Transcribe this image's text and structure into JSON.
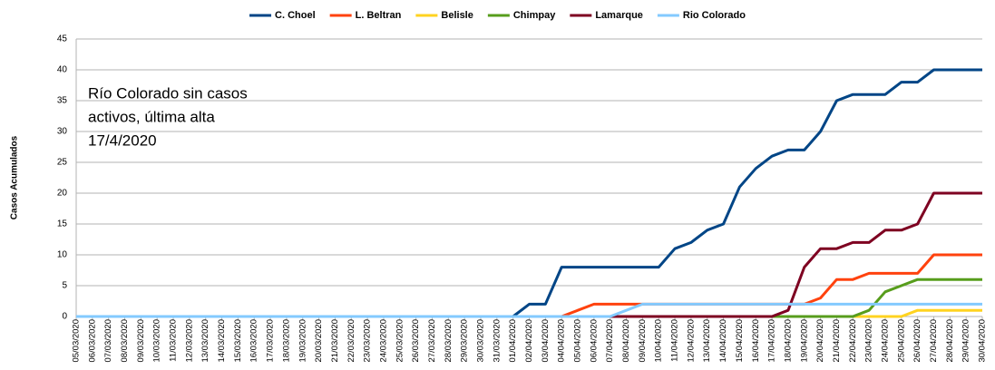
{
  "chart_data": {
    "type": "line",
    "y_label": "Casos Acumulados",
    "annotation": [
      "Río Colorado sin casos",
      "activos, última alta",
      "17/4/2020"
    ],
    "categories": [
      "05/03/2020",
      "06/03/2020",
      "07/03/2020",
      "08/03/2020",
      "09/03/2020",
      "10/03/2020",
      "11/03/2020",
      "12/03/2020",
      "13/03/2020",
      "14/03/2020",
      "15/03/2020",
      "16/03/2020",
      "17/03/2020",
      "18/03/2020",
      "19/03/2020",
      "20/03/2020",
      "21/03/2020",
      "22/03/2020",
      "23/03/2020",
      "24/03/2020",
      "25/03/2020",
      "26/03/2020",
      "27/03/2020",
      "28/03/2020",
      "29/03/2020",
      "30/03/2020",
      "31/03/2020",
      "01/04/2020",
      "02/04/2020",
      "03/04/2020",
      "04/04/2020",
      "05/04/2020",
      "06/04/2020",
      "07/04/2020",
      "08/04/2020",
      "09/04/2020",
      "10/04/2020",
      "11/04/2020",
      "12/04/2020",
      "13/04/2020",
      "14/04/2020",
      "15/04/2020",
      "16/04/2020",
      "17/04/2020",
      "18/04/2020",
      "19/04/2020",
      "20/04/2020",
      "21/04/2020",
      "22/04/2020",
      "23/04/2020",
      "24/04/2020",
      "25/04/2020",
      "26/04/2020",
      "27/04/2020",
      "28/04/2020",
      "29/04/2020",
      "30/04/2020"
    ],
    "series": [
      {
        "name": "C. Choel",
        "color": "#004586",
        "values": [
          0,
          0,
          0,
          0,
          0,
          0,
          0,
          0,
          0,
          0,
          0,
          0,
          0,
          0,
          0,
          0,
          0,
          0,
          0,
          0,
          0,
          0,
          0,
          0,
          0,
          0,
          0,
          0,
          2,
          2,
          8,
          8,
          8,
          8,
          8,
          8,
          8,
          11,
          12,
          14,
          15,
          21,
          24,
          26,
          27,
          27,
          30,
          35,
          36,
          36,
          36,
          38,
          38,
          40,
          40,
          40,
          40
        ]
      },
      {
        "name": "L. Beltran",
        "color": "#ff420e",
        "values": [
          0,
          0,
          0,
          0,
          0,
          0,
          0,
          0,
          0,
          0,
          0,
          0,
          0,
          0,
          0,
          0,
          0,
          0,
          0,
          0,
          0,
          0,
          0,
          0,
          0,
          0,
          0,
          0,
          0,
          0,
          0,
          1,
          2,
          2,
          2,
          2,
          2,
          2,
          2,
          2,
          2,
          2,
          2,
          2,
          2,
          2,
          3,
          6,
          6,
          7,
          7,
          7,
          7,
          10,
          10,
          10,
          10
        ]
      },
      {
        "name": "Belisle",
        "color": "#ffd320",
        "values": [
          0,
          0,
          0,
          0,
          0,
          0,
          0,
          0,
          0,
          0,
          0,
          0,
          0,
          0,
          0,
          0,
          0,
          0,
          0,
          0,
          0,
          0,
          0,
          0,
          0,
          0,
          0,
          0,
          0,
          0,
          0,
          0,
          0,
          0,
          0,
          0,
          0,
          0,
          0,
          0,
          0,
          0,
          0,
          0,
          0,
          0,
          0,
          0,
          0,
          0,
          0,
          0,
          1,
          1,
          1,
          1,
          1
        ]
      },
      {
        "name": "Chimpay",
        "color": "#579d1c",
        "values": [
          0,
          0,
          0,
          0,
          0,
          0,
          0,
          0,
          0,
          0,
          0,
          0,
          0,
          0,
          0,
          0,
          0,
          0,
          0,
          0,
          0,
          0,
          0,
          0,
          0,
          0,
          0,
          0,
          0,
          0,
          0,
          0,
          0,
          0,
          0,
          0,
          0,
          0,
          0,
          0,
          0,
          0,
          0,
          0,
          0,
          0,
          0,
          0,
          0,
          1,
          4,
          5,
          6,
          6,
          6,
          6,
          6
        ]
      },
      {
        "name": "Lamarque",
        "color": "#7e0021",
        "values": [
          0,
          0,
          0,
          0,
          0,
          0,
          0,
          0,
          0,
          0,
          0,
          0,
          0,
          0,
          0,
          0,
          0,
          0,
          0,
          0,
          0,
          0,
          0,
          0,
          0,
          0,
          0,
          0,
          0,
          0,
          0,
          0,
          0,
          0,
          0,
          0,
          0,
          0,
          0,
          0,
          0,
          0,
          0,
          0,
          1,
          8,
          11,
          11,
          12,
          12,
          14,
          14,
          15,
          20,
          20,
          20,
          20
        ]
      },
      {
        "name": "Rio Colorado",
        "color": "#83caff",
        "values": [
          0,
          0,
          0,
          0,
          0,
          0,
          0,
          0,
          0,
          0,
          0,
          0,
          0,
          0,
          0,
          0,
          0,
          0,
          0,
          0,
          0,
          0,
          0,
          0,
          0,
          0,
          0,
          0,
          0,
          0,
          0,
          0,
          0,
          0,
          1,
          2,
          2,
          2,
          2,
          2,
          2,
          2,
          2,
          2,
          2,
          2,
          2,
          2,
          2,
          2,
          2,
          2,
          2,
          2,
          2,
          2,
          2
        ]
      }
    ],
    "ylim": [
      0,
      45
    ],
    "yticks": [
      0,
      5,
      10,
      15,
      20,
      25,
      30,
      35,
      40,
      45
    ],
    "grid": true,
    "legend": "top"
  }
}
